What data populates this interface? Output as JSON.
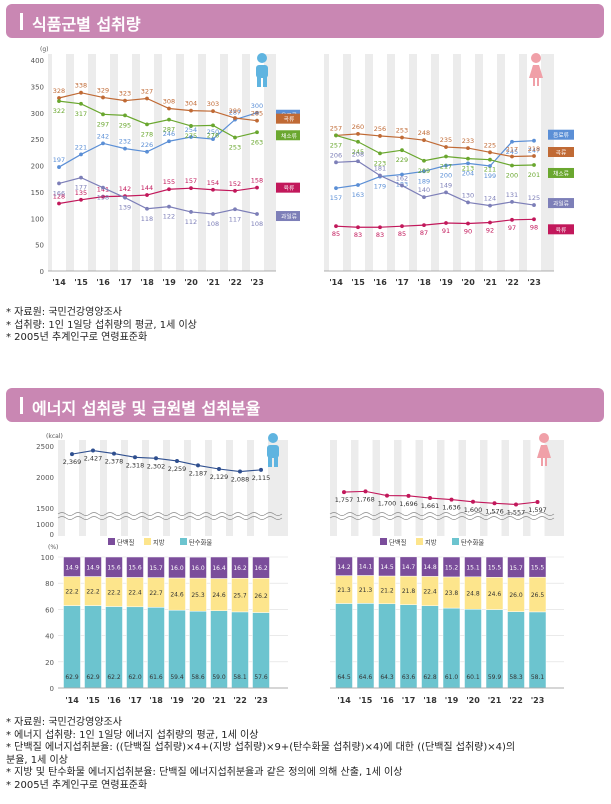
{
  "section1": {
    "title": "식품군별 섭취량",
    "notes": [
      "* 자료원: 국민건강영양조사",
      "* 섭취량: 1인 1일당 섭취량의 평균, 1세 이상",
      "* 2005년 추계인구로 연령표준화"
    ]
  },
  "section2": {
    "title": "에너지 섭취량 및 급원별 섭취분율",
    "notes": [
      "* 자료원: 국민건강영양조사",
      "* 에너지 섭취량: 1인 1일당 에너지 섭취량의 평균, 1세 이상",
      "* 단백질 에너지섭취분율: ((단백질 섭취량)×4+(지방 섭취량)×9+(탄수화물 섭취량)×4)에 대한 ((단백질 섭취량)×4)의",
      "분율, 1세 이상",
      "* 지방 및 탄수화물 에너지섭취분율: 단백질 에너지섭취분율과 같은 정의에 의해 산출, 1세 이상",
      "* 2005년 추계인구로 연령표준화"
    ]
  },
  "colors": {
    "header": "#c987b3",
    "male_icon": "#5fb4e0",
    "female_icon": "#f0a0a8"
  },
  "chart_data": [
    {
      "type": "line",
      "panel": "food_male",
      "x": [
        "'14",
        "'15",
        "'16",
        "'17",
        "'18",
        "'19",
        "'20",
        "'21",
        "'22",
        "'23"
      ],
      "ylabel": "(g)",
      "ylim": [
        0,
        400
      ],
      "yticks": [
        0,
        50,
        100,
        150,
        200,
        250,
        300,
        350,
        400
      ],
      "series": [
        {
          "name": "음료류",
          "color": "#5b8fd6",
          "values": [
            197,
            221,
            242,
            232,
            226,
            246,
            254,
            250,
            287,
            300
          ]
        },
        {
          "name": "곡류",
          "color": "#c06a35",
          "values": [
            328,
            338,
            329,
            323,
            327,
            308,
            304,
            303,
            290,
            285
          ]
        },
        {
          "name": "채소류",
          "color": "#6aa72f",
          "values": [
            322,
            317,
            297,
            295,
            278,
            287,
            275,
            276,
            253,
            263
          ]
        },
        {
          "name": "육류",
          "color": "#c2185b",
          "values": [
            128,
            135,
            141,
            142,
            144,
            155,
            157,
            154,
            152,
            158
          ]
        },
        {
          "name": "과일류",
          "color": "#7d7fb8",
          "values": [
            166,
            177,
            158,
            139,
            118,
            122,
            112,
            108,
            117,
            108
          ]
        }
      ]
    },
    {
      "type": "line",
      "panel": "food_female",
      "x": [
        "'14",
        "'15",
        "'16",
        "'17",
        "'18",
        "'19",
        "'20",
        "'21",
        "'22",
        "'23"
      ],
      "ylim": [
        0,
        400
      ],
      "series": [
        {
          "name": "음료류",
          "color": "#5b8fd6",
          "values": [
            157,
            163,
            179,
            183,
            189,
            200,
            204,
            199,
            245,
            247
          ]
        },
        {
          "name": "곡류",
          "color": "#c06a35",
          "values": [
            257,
            260,
            256,
            253,
            248,
            235,
            233,
            225,
            217,
            218
          ]
        },
        {
          "name": "채소류",
          "color": "#6aa72f",
          "values": [
            257,
            245,
            223,
            229,
            209,
            217,
            213,
            211,
            200,
            201
          ]
        },
        {
          "name": "과일류",
          "color": "#7d7fb8",
          "values": [
            206,
            208,
            181,
            162,
            140,
            149,
            130,
            124,
            131,
            125
          ]
        },
        {
          "name": "육류",
          "color": "#c2185b",
          "values": [
            85,
            83,
            83,
            85,
            87,
            91,
            90,
            92,
            97,
            98
          ]
        }
      ]
    },
    {
      "type": "line",
      "panel": "energy_male",
      "x": [
        "'14",
        "'15",
        "'16",
        "'17",
        "'18",
        "'19",
        "'20",
        "'21",
        "'22",
        "'23"
      ],
      "ylabel": "(kcal)",
      "yticks": [
        0,
        1000,
        1500,
        2000,
        2500
      ],
      "series": [
        {
          "color": "#2f4f8f",
          "values": [
            2369,
            2427,
            2378,
            2318,
            2302,
            2259,
            2187,
            2129,
            2088,
            2115
          ]
        }
      ]
    },
    {
      "type": "line",
      "panel": "energy_female",
      "x": [
        "'14",
        "'15",
        "'16",
        "'17",
        "'18",
        "'19",
        "'20",
        "'21",
        "'22",
        "'23"
      ],
      "series": [
        {
          "color": "#c2185b",
          "values": [
            1757,
            1768,
            1700,
            1696,
            1661,
            1636,
            1600,
            1576,
            1557,
            1597
          ]
        }
      ]
    },
    {
      "type": "bar",
      "stacked": true,
      "panel": "ratio_male",
      "categories": [
        "'14",
        "'15",
        "'16",
        "'17",
        "'18",
        "'19",
        "'20",
        "'21",
        "'22",
        "'23"
      ],
      "ylabel": "(%)",
      "ylim": [
        0,
        100
      ],
      "yticks": [
        0,
        20,
        40,
        60,
        80,
        100
      ],
      "series": [
        {
          "name": "탄수화물",
          "color": "#6cc4cf",
          "values": [
            62.9,
            62.9,
            62.2,
            62.0,
            61.6,
            59.4,
            58.6,
            59.0,
            58.1,
            57.6
          ]
        },
        {
          "name": "지방",
          "color": "#fde58c",
          "values": [
            22.2,
            22.2,
            22.2,
            22.4,
            22.7,
            24.6,
            25.3,
            24.6,
            25.7,
            26.2
          ]
        },
        {
          "name": "단백질",
          "color": "#7b4d9b",
          "values": [
            14.9,
            14.9,
            15.6,
            15.6,
            15.7,
            16.0,
            16.0,
            16.4,
            16.2,
            16.2
          ]
        }
      ]
    },
    {
      "type": "bar",
      "stacked": true,
      "panel": "ratio_female",
      "categories": [
        "'14",
        "'15",
        "'16",
        "'17",
        "'18",
        "'19",
        "'20",
        "'21",
        "'22",
        "'23"
      ],
      "ylim": [
        0,
        100
      ],
      "series": [
        {
          "name": "탄수화물",
          "color": "#6cc4cf",
          "values": [
            64.5,
            64.6,
            64.3,
            63.6,
            62.8,
            61.0,
            60.1,
            59.9,
            58.3,
            58.1
          ]
        },
        {
          "name": "지방",
          "color": "#fde58c",
          "values": [
            21.3,
            21.3,
            21.2,
            21.8,
            22.4,
            23.8,
            24.8,
            24.6,
            26.0,
            26.5
          ]
        },
        {
          "name": "단백질",
          "color": "#7b4d9b",
          "values": [
            14.2,
            14.1,
            14.5,
            14.7,
            14.8,
            15.2,
            15.1,
            15.5,
            15.7,
            15.5
          ]
        }
      ]
    }
  ]
}
